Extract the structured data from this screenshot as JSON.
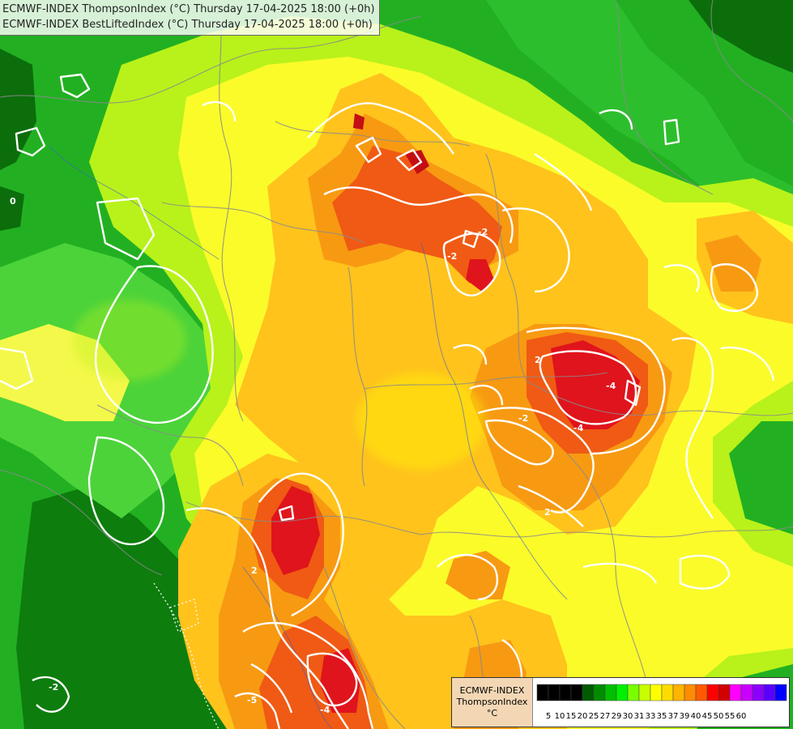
{
  "header": {
    "line1": "ECMWF-INDEX ThompsonIndex (°C) Thursday 17-04-2025 18:00 (+0h)",
    "line2": "ECMWF-INDEX BestLiftedIndex (°C) Thursday 17-04-2025 18:00 (+0h)"
  },
  "legend": {
    "model": "ECMWF-INDEX",
    "parameter": "ThompsonIndex",
    "unit": "°C",
    "ticks": [
      "5",
      "10",
      "15",
      "20",
      "25",
      "27",
      "29",
      "30",
      "31",
      "33",
      "35",
      "37",
      "39",
      "40",
      "45",
      "50",
      "55",
      "60"
    ],
    "colors": [
      "#000000",
      "#000000",
      "#000000",
      "#000000",
      "#005a00",
      "#008c00",
      "#00be00",
      "#00f000",
      "#78ff00",
      "#c8ff00",
      "#ffff00",
      "#ffdc00",
      "#ffb400",
      "#ff8c00",
      "#ff5a00",
      "#ff0000",
      "#d20000",
      "#ff00ff",
      "#c800ff",
      "#8c00ff",
      "#5a00ff",
      "#0000ff"
    ]
  },
  "contours": {
    "labels": [
      "0",
      "2",
      "2",
      "2",
      "-2",
      "-4",
      "-4",
      "-5",
      "-4",
      "-2",
      "-2",
      "-2"
    ]
  }
}
